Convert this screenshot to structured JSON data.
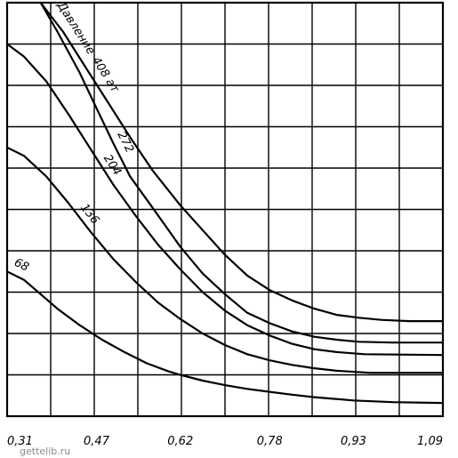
{
  "watermark": "gettelib.ru",
  "chart_data": {
    "type": "line",
    "x_tick_labels": [
      "0,31",
      "0,47",
      "0,62",
      "0,78",
      "0,93",
      "1,09"
    ],
    "x_tick_values": [
      0.31,
      0.47,
      0.62,
      0.78,
      0.93,
      1.09
    ],
    "xlim": [
      0.31,
      1.09
    ],
    "y_row_count": 10,
    "ylim": [
      0,
      10
    ],
    "grid": true,
    "series": [
      {
        "name": "Давление 408 ат",
        "label_parts": [
          "Давление",
          "408 ат"
        ],
        "points": [
          [
            0.37,
            10.0
          ],
          [
            0.41,
            9.3
          ],
          [
            0.45,
            8.45
          ],
          [
            0.49,
            7.6
          ],
          [
            0.53,
            6.75
          ],
          [
            0.57,
            5.95
          ],
          [
            0.62,
            5.1
          ],
          [
            0.66,
            4.5
          ],
          [
            0.7,
            3.9
          ],
          [
            0.74,
            3.4
          ],
          [
            0.78,
            3.05
          ],
          [
            0.82,
            2.8
          ],
          [
            0.86,
            2.6
          ],
          [
            0.9,
            2.45
          ],
          [
            0.94,
            2.38
          ],
          [
            0.98,
            2.33
          ],
          [
            1.03,
            2.3
          ],
          [
            1.09,
            2.3
          ]
        ]
      },
      {
        "name": "272",
        "label_parts": [
          "272"
        ],
        "points": [
          [
            0.37,
            10.0
          ],
          [
            0.4,
            9.3
          ],
          [
            0.44,
            8.3
          ],
          [
            0.47,
            7.45
          ],
          [
            0.5,
            6.6
          ],
          [
            0.53,
            5.8
          ],
          [
            0.57,
            5.05
          ],
          [
            0.62,
            4.1
          ],
          [
            0.66,
            3.45
          ],
          [
            0.7,
            2.95
          ],
          [
            0.74,
            2.5
          ],
          [
            0.78,
            2.25
          ],
          [
            0.82,
            2.05
          ],
          [
            0.86,
            1.92
          ],
          [
            0.9,
            1.85
          ],
          [
            0.94,
            1.8
          ],
          [
            1.0,
            1.78
          ],
          [
            1.09,
            1.78
          ]
        ]
      },
      {
        "name": "204",
        "label_parts": [
          "204"
        ],
        "points": [
          [
            0.31,
            9.0
          ],
          [
            0.34,
            8.7
          ],
          [
            0.38,
            8.1
          ],
          [
            0.42,
            7.3
          ],
          [
            0.46,
            6.45
          ],
          [
            0.5,
            5.6
          ],
          [
            0.54,
            4.85
          ],
          [
            0.58,
            4.15
          ],
          [
            0.62,
            3.55
          ],
          [
            0.66,
            3.0
          ],
          [
            0.7,
            2.55
          ],
          [
            0.74,
            2.2
          ],
          [
            0.78,
            1.95
          ],
          [
            0.82,
            1.75
          ],
          [
            0.86,
            1.62
          ],
          [
            0.9,
            1.55
          ],
          [
            0.95,
            1.5
          ],
          [
            1.09,
            1.48
          ]
        ]
      },
      {
        "name": "136",
        "label_parts": [
          "136"
        ],
        "points": [
          [
            0.31,
            6.5
          ],
          [
            0.34,
            6.3
          ],
          [
            0.38,
            5.8
          ],
          [
            0.42,
            5.15
          ],
          [
            0.46,
            4.45
          ],
          [
            0.5,
            3.8
          ],
          [
            0.54,
            3.25
          ],
          [
            0.58,
            2.75
          ],
          [
            0.62,
            2.35
          ],
          [
            0.66,
            2.0
          ],
          [
            0.7,
            1.72
          ],
          [
            0.74,
            1.5
          ],
          [
            0.78,
            1.35
          ],
          [
            0.82,
            1.24
          ],
          [
            0.86,
            1.16
          ],
          [
            0.9,
            1.1
          ],
          [
            0.96,
            1.05
          ],
          [
            1.09,
            1.05
          ]
        ]
      },
      {
        "name": "68",
        "label_parts": [
          "68"
        ],
        "points": [
          [
            0.31,
            3.5
          ],
          [
            0.34,
            3.3
          ],
          [
            0.37,
            2.95
          ],
          [
            0.4,
            2.6
          ],
          [
            0.44,
            2.2
          ],
          [
            0.48,
            1.85
          ],
          [
            0.52,
            1.55
          ],
          [
            0.56,
            1.28
          ],
          [
            0.6,
            1.08
          ],
          [
            0.62,
            1.0
          ],
          [
            0.66,
            0.86
          ],
          [
            0.7,
            0.75
          ],
          [
            0.74,
            0.66
          ],
          [
            0.78,
            0.59
          ],
          [
            0.82,
            0.52
          ],
          [
            0.86,
            0.46
          ],
          [
            0.93,
            0.38
          ],
          [
            1.0,
            0.34
          ],
          [
            1.09,
            0.32
          ]
        ]
      }
    ]
  }
}
